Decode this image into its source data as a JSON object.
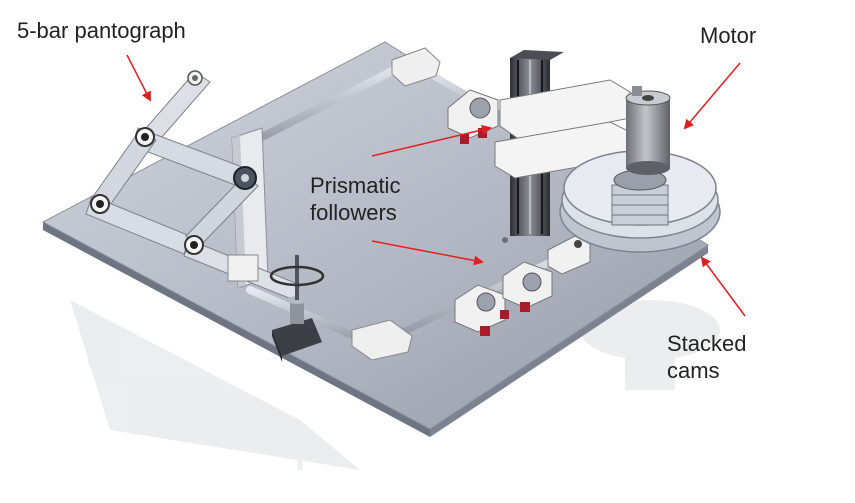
{
  "labels": {
    "pantograph": "5-bar pantograph",
    "motor": "Motor",
    "prismatic": "Prismatic\nfollowers",
    "cams": "Stacked\ncams"
  },
  "colors": {
    "annotation_arrow": "#e02020",
    "plate": "#a4aab7",
    "plate_edge": "#6f7482",
    "rod": "#b9bfcc",
    "link": "#d7dbe3",
    "pillow_block": "#eeeeee",
    "bearing_red": "#a81c2a",
    "motor_body": "#8a8d93",
    "cam": "#d4d9e2"
  }
}
